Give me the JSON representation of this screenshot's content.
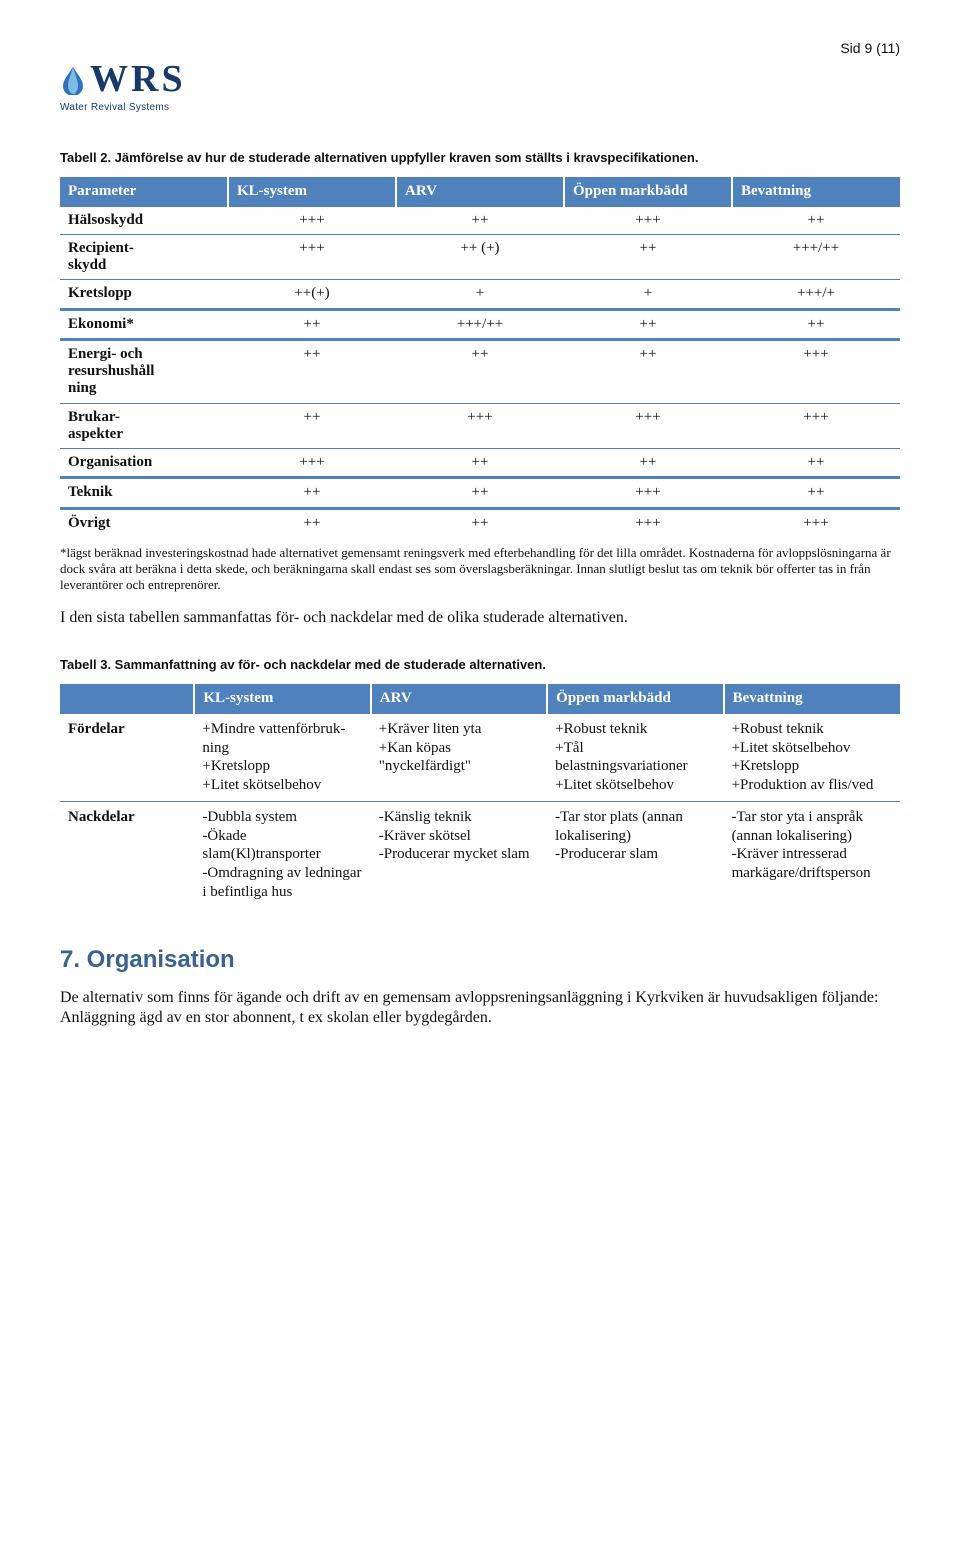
{
  "pageNumber": "Sid 9 (11)",
  "logo": {
    "acronym": "WRS",
    "subtitle": "Water Revival Systems",
    "iconColor": "#2f73bd"
  },
  "caption1": "Tabell 2. Jämförelse av hur de studerade alternativen uppfyller kraven som ställts i kravspecifikationen.",
  "table1": {
    "headerBg": "#4f81bd",
    "headers": [
      "Parameter",
      "KL-system",
      "ARV",
      "Öppen markbädd",
      "Bevattning"
    ],
    "rows": [
      {
        "label": "Hälsoskydd",
        "cells": [
          "+++",
          "++",
          "+++",
          "++"
        ],
        "sectionBreak": false
      },
      {
        "label": "Recipient-\nskydd",
        "cells": [
          "+++",
          "++ (+)",
          "++",
          "+++/++"
        ],
        "sectionBreak": false
      },
      {
        "label": "Kretslopp",
        "cells": [
          "++(+)",
          "+",
          "+",
          "+++/+"
        ],
        "sectionBreak": false
      },
      {
        "label": "Ekonomi*",
        "cells": [
          "++",
          "+++/++",
          "++",
          "++"
        ],
        "sectionBreak": true
      },
      {
        "label": "Energi- och\nresurshushåll\nning",
        "cells": [
          "++",
          "++",
          "++",
          "+++"
        ],
        "sectionBreak": true
      },
      {
        "label": "Brukar-\naspekter",
        "cells": [
          "++",
          "+++",
          "+++",
          "+++"
        ],
        "sectionBreak": false
      },
      {
        "label": "Organisation",
        "cells": [
          "+++",
          "++",
          "++",
          "++"
        ],
        "sectionBreak": false
      },
      {
        "label": "Teknik",
        "cells": [
          "++",
          "++",
          "+++",
          "++"
        ],
        "sectionBreak": true
      },
      {
        "label": "Övrigt",
        "cells": [
          "++",
          "++",
          "+++",
          "+++"
        ],
        "sectionBreak": true
      }
    ]
  },
  "footnote": "*lägst beräknad investeringskostnad hade alternativet gemensamt reningsverk med efterbehandling för det lilla området. Kostnaderna för avloppslösningarna är dock svåra att beräkna i detta skede, och beräkningarna skall endast ses som överslagsberäkningar. Innan slutligt beslut tas om teknik bör offerter tas in från leverantörer och entreprenörer.",
  "bodyText1": "I den sista tabellen sammanfattas för- och nackdelar med de olika studerade alternativen.",
  "caption2": "Tabell 3. Sammanfattning av för- och nackdelar med de studerade alternativen.",
  "table2": {
    "headers": [
      "",
      "KL-system",
      "ARV",
      "Öppen markbädd",
      "Bevattning"
    ],
    "rows": [
      {
        "label": "Fördelar",
        "cells": [
          "+Mindre vattenförbruk-ning\n +Kretslopp\n+Litet skötselbehov",
          "+Kräver liten yta\n+Kan köpas \"nyckelfärdigt\"",
          "+Robust teknik\n+Tål belastningsvariationer\n+Litet skötselbehov",
          "+Robust teknik\n+Litet skötselbehov\n+Kretslopp\n+Produktion av flis/ved"
        ]
      },
      {
        "label": "Nackdelar",
        "cells": [
          "-Dubbla system\n-Ökade slam(Kl)transporter\n-Omdragning av ledningar i befintliga hus",
          "-Känslig teknik\n-Kräver skötsel\n-Producerar mycket slam",
          "-Tar stor plats (annan lokalisering)\n-Producerar slam",
          "-Tar stor yta i anspråk (annan lokalisering)\n-Kräver intresserad markägare/driftsperson"
        ]
      }
    ]
  },
  "sectionHeading": "7. Organisation",
  "bodyText2": "De alternativ som finns för ägande och drift av en gemensam avloppsreningsanläggning i Kyrkviken är huvudsakligen följande: Anläggning ägd av en stor abonnent, t ex skolan eller bygdegården."
}
